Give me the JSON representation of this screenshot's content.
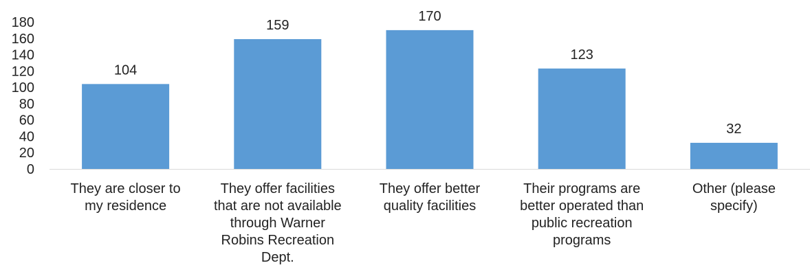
{
  "chart_data": {
    "type": "bar",
    "categories": [
      [
        "They are closer to",
        "my residence"
      ],
      [
        "They offer facilities",
        "that are not available",
        "through Warner",
        "Robins Recreation",
        "Dept."
      ],
      [
        "They offer better",
        "quality facilities"
      ],
      [
        "Their programs are",
        "better operated than",
        "public recreation",
        "programs"
      ],
      [
        "Other (please",
        "specify)"
      ]
    ],
    "values": [
      104,
      159,
      170,
      123,
      32
    ],
    "data_labels": [
      "104",
      "159",
      "170",
      "123",
      "32"
    ],
    "y_ticks": [
      0,
      20,
      40,
      60,
      80,
      100,
      120,
      140,
      160,
      180
    ],
    "ylim": [
      0,
      180
    ],
    "grid": false,
    "legend": "none",
    "bar_color": "#5b9bd5",
    "axis_color": "#d9d9d9",
    "title": "",
    "xlabel": "",
    "ylabel": ""
  }
}
